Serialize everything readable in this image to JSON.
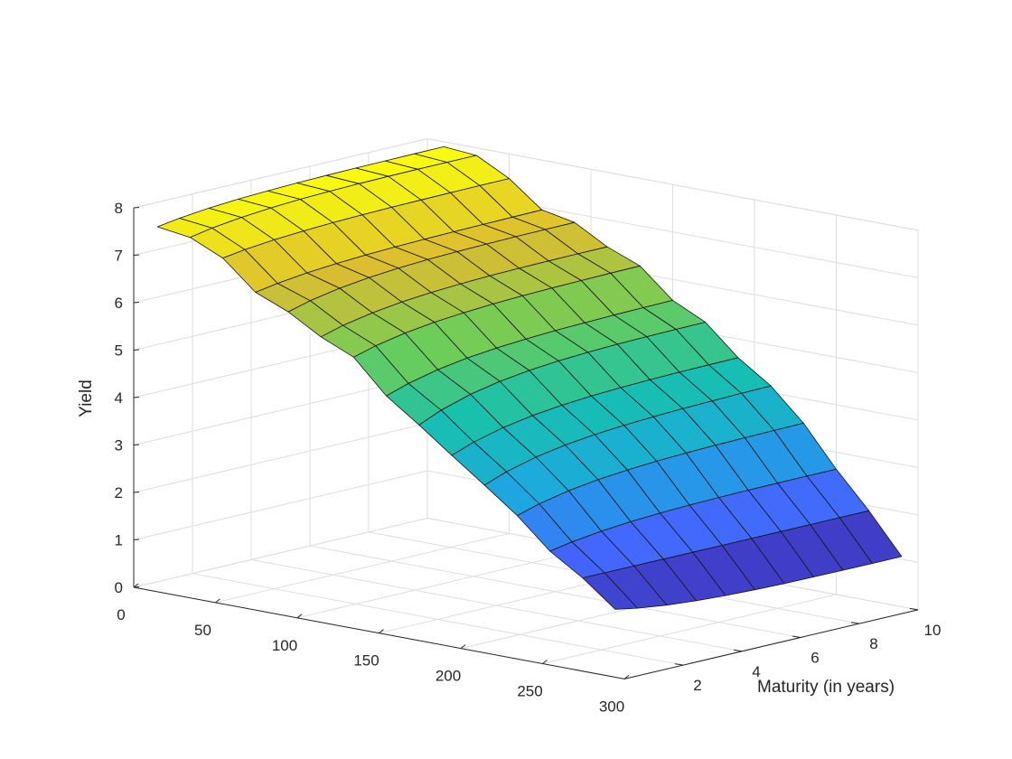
{
  "chart_data": {
    "type": "surface",
    "xlabel": "",
    "ylabel": "Maturity (in years)",
    "zlabel": "Yield",
    "xlim": [
      0,
      300
    ],
    "ylim": [
      0,
      10
    ],
    "zlim": [
      0,
      8
    ],
    "x_ticks": [
      0,
      50,
      100,
      150,
      200,
      250,
      300
    ],
    "y_ticks": [
      2,
      4,
      6,
      8,
      10
    ],
    "z_ticks": [
      0,
      1,
      2,
      3,
      4,
      5,
      6,
      7,
      8
    ],
    "grid": true,
    "colormap": "parula",
    "colormap_colors": [
      "#3e26a8",
      "#4367fd",
      "#1ca9df",
      "#17c0ae",
      "#6ccd59",
      "#dcbd30",
      "#f9fb0e"
    ],
    "maturities": [
      0.25,
      1,
      2,
      3,
      4,
      5,
      6,
      7,
      8,
      9,
      10
    ],
    "observations": [
      10,
      30,
      50,
      70,
      90,
      110,
      130,
      150,
      170,
      190,
      210,
      230,
      250,
      270,
      290
    ],
    "yield_short": [
      7.6,
      7.5,
      7.2,
      6.6,
      6.3,
      5.9,
      5.6,
      4.9,
      4.4,
      3.9,
      3.4,
      2.9,
      2.3,
      1.9,
      1.4
    ],
    "yield_long": [
      7.9,
      7.8,
      7.5,
      7.0,
      6.8,
      6.4,
      6.2,
      5.6,
      5.2,
      4.6,
      4.2,
      3.5,
      2.6,
      1.9,
      1.1
    ]
  }
}
